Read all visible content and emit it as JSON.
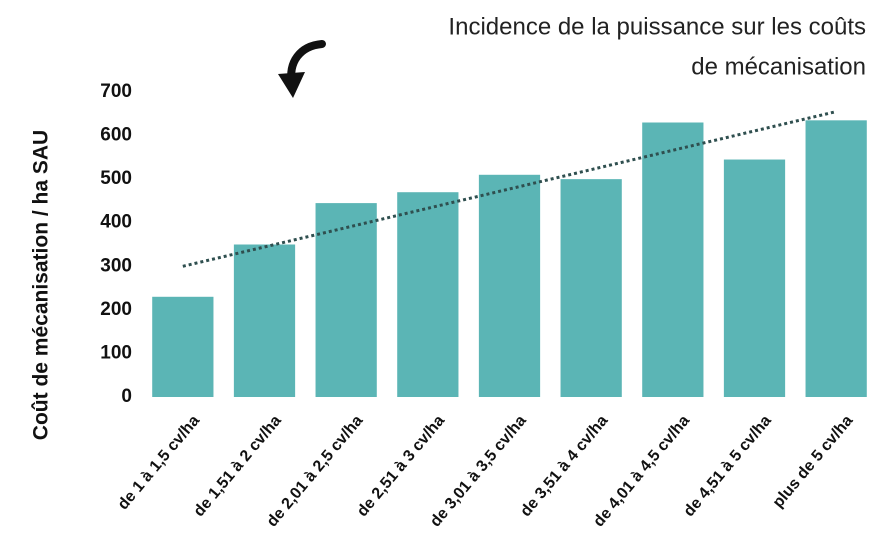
{
  "chart_data": {
    "type": "bar",
    "title": [
      "Incidence  de la puissance sur les coûts",
      "de mécanisation"
    ],
    "y_label": "Coût de mécanisation / ha SAU",
    "categories": [
      "de 1 à 1,5 cv/ha",
      "de 1,51 à 2 cv/ha",
      "de 2,01 à 2,5 cv/ha",
      "de 2,51 à 3 cv/ha",
      "de 3,01 à 3,5 cv/ha",
      "de 3,51 à 4 cv/ha",
      "de 4,01 à 4,5 cv/ha",
      "de 4,51 à 5 cv/ha",
      "plus de 5 cv/ha"
    ],
    "values": [
      230,
      350,
      445,
      470,
      510,
      500,
      630,
      545,
      635
    ],
    "color": "#5bb5b5",
    "trendline": {
      "start": 300,
      "end": 655,
      "color": "#2f4f4f"
    },
    "ylim": [
      0,
      700
    ],
    "yticks": [
      0,
      100,
      200,
      300,
      400,
      500,
      600,
      700
    ],
    "grid": false
  }
}
